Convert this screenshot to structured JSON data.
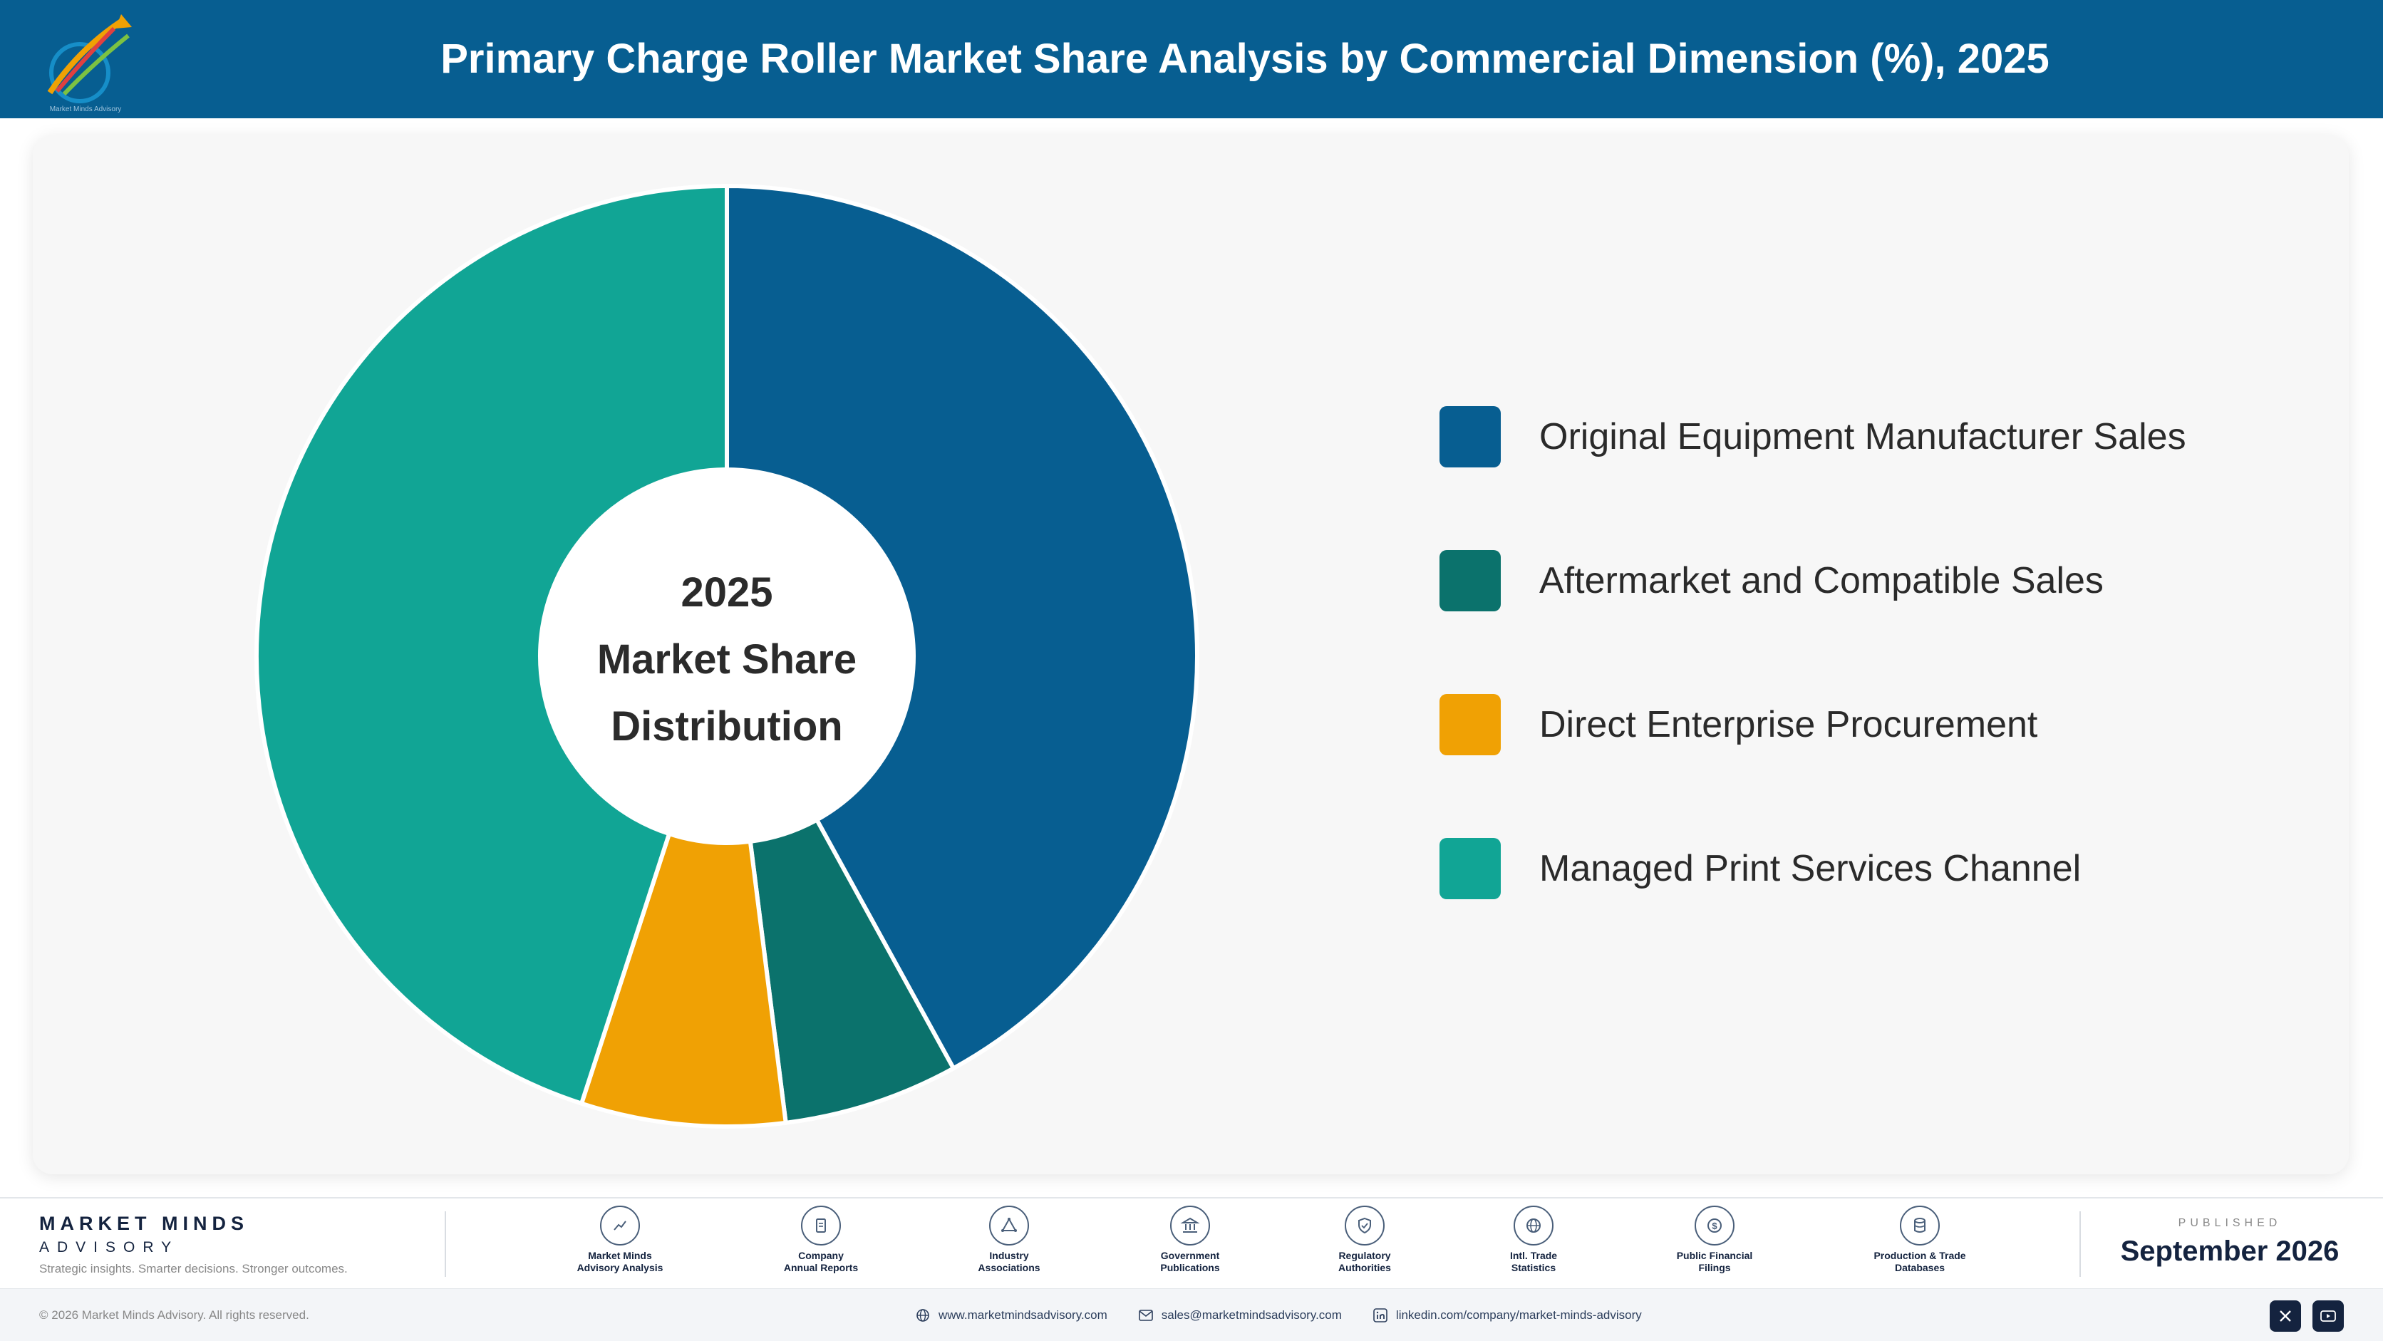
{
  "header": {
    "title": "Primary Charge Roller Market Share Analysis by Commercial Dimension (%), 2025",
    "logo_icon": "market-minds-logo"
  },
  "chart_data": {
    "type": "pie",
    "style": "donut",
    "title": "Primary Charge Roller Market Share Analysis by Commercial Dimension (%), 2025",
    "center_label": {
      "line1": "2025",
      "line2": "Market Share",
      "line3": "Distribution"
    },
    "categories": [
      "Original Equipment Manufacturer Sales",
      "Aftermarket and Compatible Sales",
      "Direct Enterprise Procurement",
      "Managed Print Services Channel"
    ],
    "values": [
      42,
      6,
      7,
      45
    ],
    "colors": [
      "#075e91",
      "#0b726c",
      "#f0a104",
      "#11a595"
    ],
    "legend_position": "right"
  },
  "footer": {
    "brand": {
      "name": "MARKET MINDS",
      "sub": "ADVISORY",
      "tagline": "Strategic insights. Smarter decisions. Stronger outcomes."
    },
    "sources": [
      {
        "icon": "chart-trend-icon",
        "line1": "Market Minds",
        "line2": "Advisory Analysis"
      },
      {
        "icon": "document-icon",
        "line1": "Company",
        "line2": "Annual Reports"
      },
      {
        "icon": "network-icon",
        "line1": "Industry",
        "line2": "Associations"
      },
      {
        "icon": "building-icon",
        "line1": "Government",
        "line2": "Publications"
      },
      {
        "icon": "shield-icon",
        "line1": "Regulatory",
        "line2": "Authorities"
      },
      {
        "icon": "globe-icon",
        "line1": "Intl. Trade",
        "line2": "Statistics"
      },
      {
        "icon": "currency-icon",
        "line1": "Public Financial",
        "line2": "Filings"
      },
      {
        "icon": "database-icon",
        "line1": "Production & Trade",
        "line2": "Databases"
      }
    ],
    "published": {
      "label": "PUBLISHED",
      "date": "September 2026"
    },
    "copyright": "© 2026 Market Minds Advisory. All rights reserved.",
    "contacts": {
      "website": "www.marketmindsadvisory.com",
      "email": "sales@marketmindsadvisory.com",
      "linkedin": "linkedin.com/company/market-minds-advisory"
    },
    "social": [
      "x-icon",
      "youtube-icon"
    ]
  }
}
